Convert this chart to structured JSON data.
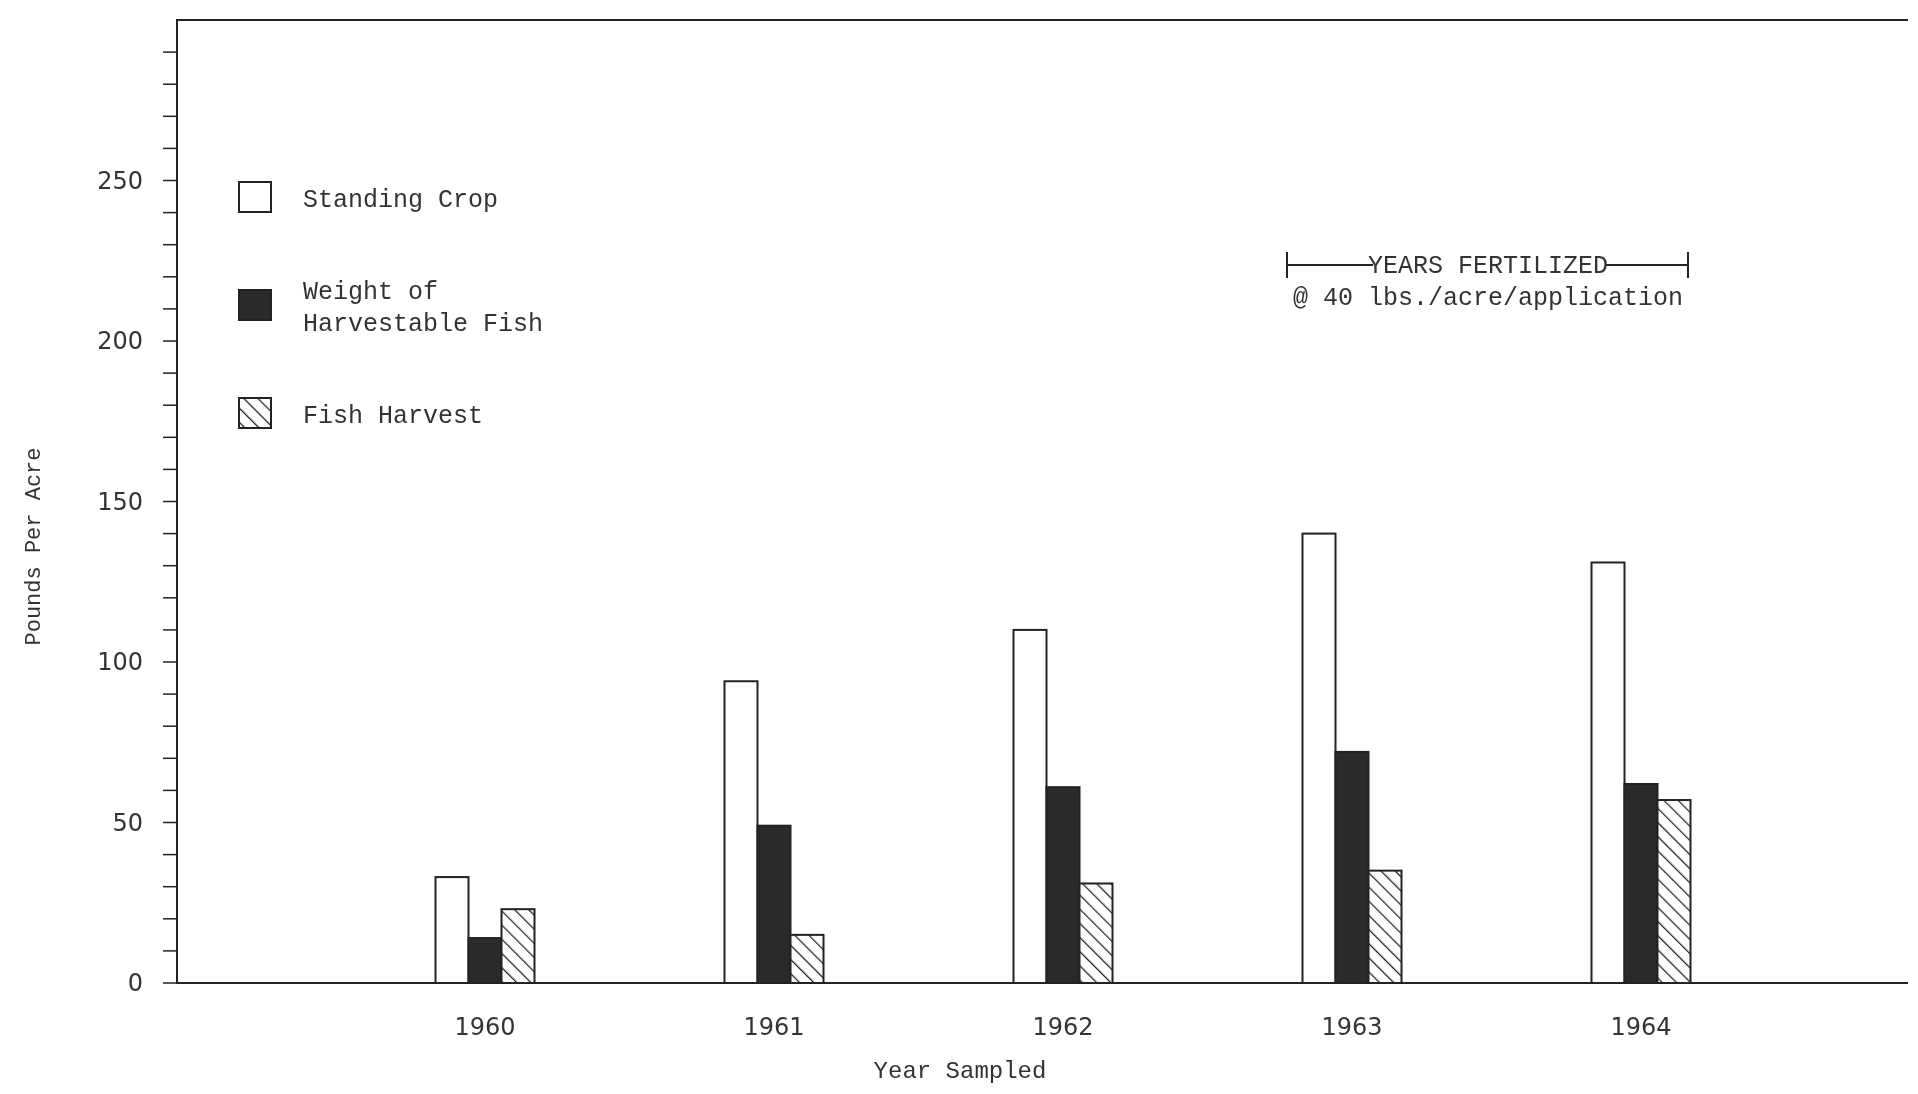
{
  "chart_data": {
    "type": "bar",
    "xlabel": "Year Sampled",
    "ylabel": "Pounds Per Acre",
    "categories": [
      "1960",
      "1961",
      "1962",
      "1963",
      "1964"
    ],
    "series": [
      {
        "name": "Standing Crop",
        "color": "#ffffff",
        "values": [
          33,
          94,
          110,
          140,
          131
        ]
      },
      {
        "name": "Weight of Harvestable Fish",
        "color": "#2a2a2a",
        "values": [
          14,
          49,
          61,
          72,
          62
        ]
      },
      {
        "name": "Fish Harvest",
        "color": "#222222",
        "values": [
          23,
          15,
          31,
          35,
          57
        ]
      }
    ],
    "ylim": [
      0,
      300
    ],
    "yticks": [
      0,
      {
        "value": 10,
        "label": null
      },
      {
        "value": 20,
        "label": null
      },
      {
        "value": 30,
        "label": null
      },
      {
        "value": 40,
        "label": null
      },
      50,
      {
        "value": 60,
        "label": null
      },
      {
        "value": 70,
        "label": null
      },
      {
        "value": 80,
        "label": null
      },
      {
        "value": 90,
        "label": null
      },
      100,
      {
        "value": 110,
        "label": null
      },
      {
        "value": 120,
        "label": null
      },
      {
        "value": 130,
        "label": null
      },
      {
        "value": 140,
        "label": null
      },
      150,
      {
        "value": 160,
        "label": null
      },
      {
        "value": 170,
        "label": null
      },
      {
        "value": 180,
        "label": null
      },
      {
        "value": 190,
        "label": null
      },
      200,
      {
        "value": 210,
        "label": null
      },
      {
        "value": 220,
        "label": null
      },
      {
        "value": 230,
        "label": null
      },
      {
        "value": 240,
        "label": null
      },
      250,
      {
        "value": 260,
        "label": null
      },
      {
        "value": 270,
        "label": null
      },
      {
        "value": 280,
        "label": null
      },
      {
        "value": 290,
        "label": null
      }
    ],
    "legend": "top left",
    "grid": false,
    "annotations": [
      "YEARS FERTILIZED",
      "@ 40 lbs./acre/application"
    ]
  }
}
